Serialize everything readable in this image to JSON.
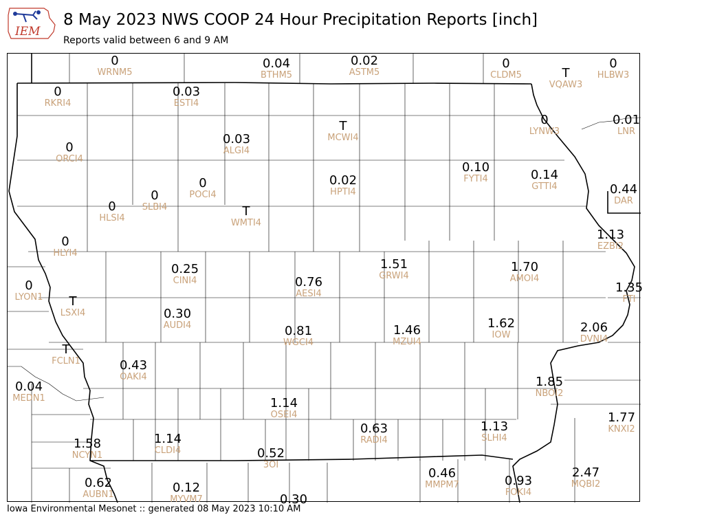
{
  "header": {
    "title": "8 May 2023 NWS COOP 24 Hour Precipitation Reports [inch]",
    "subtitle": "Reports valid between 6 and 9 AM",
    "logo_text": "IEM"
  },
  "footer": "Iowa Environmental Mesonet :: generated 08 May 2023 10:10 AM",
  "colors": {
    "value": "#000000",
    "station_id": "#c9a27a",
    "logo_blue": "#1f3b9a",
    "logo_red": "#c0392b"
  },
  "stations": [
    {
      "id": "WRNM5",
      "value": "0"
    },
    {
      "id": "BTHM5",
      "value": "0.04"
    },
    {
      "id": "ASTM5",
      "value": "0.02"
    },
    {
      "id": "CLDM5",
      "value": "0"
    },
    {
      "id": "VQAW3",
      "value": "T"
    },
    {
      "id": "HLBW3",
      "value": "0"
    },
    {
      "id": "RKRI4",
      "value": "0"
    },
    {
      "id": "ESTI4",
      "value": "0.03"
    },
    {
      "id": "LYNW3",
      "value": "0"
    },
    {
      "id": "LNR",
      "value": "0.01"
    },
    {
      "id": "MCWI4",
      "value": "T"
    },
    {
      "id": "ORCI4",
      "value": "0"
    },
    {
      "id": "ALGI4",
      "value": "0.03"
    },
    {
      "id": "FYTI4",
      "value": "0.10"
    },
    {
      "id": "GTTI4",
      "value": "0.14"
    },
    {
      "id": "DAR",
      "value": "0.44"
    },
    {
      "id": "HPTI4",
      "value": "0.02"
    },
    {
      "id": "POCI4",
      "value": "0"
    },
    {
      "id": "SLBI4",
      "value": "0"
    },
    {
      "id": "HLSI4",
      "value": "0"
    },
    {
      "id": "WMTI4",
      "value": "T"
    },
    {
      "id": "EZBI2",
      "value": "1.13"
    },
    {
      "id": "HLYI4",
      "value": "0"
    },
    {
      "id": "GRWI4",
      "value": "1.51"
    },
    {
      "id": "AMOI4",
      "value": "1.70"
    },
    {
      "id": "CINI4",
      "value": "0.25"
    },
    {
      "id": "AESI4",
      "value": "0.76"
    },
    {
      "id": "LYON1",
      "value": "0"
    },
    {
      "id": "FTI",
      "value": "1.35"
    },
    {
      "id": "LSXI4",
      "value": "T"
    },
    {
      "id": "AUDI4",
      "value": "0.30"
    },
    {
      "id": "IOW",
      "value": "1.62"
    },
    {
      "id": "WGCI4",
      "value": "0.81"
    },
    {
      "id": "MZUI4",
      "value": "1.46"
    },
    {
      "id": "DVNI4",
      "value": "2.06"
    },
    {
      "id": "FCLN1",
      "value": "T"
    },
    {
      "id": "OAKI4",
      "value": "0.43"
    },
    {
      "id": "NBOI2",
      "value": "1.85"
    },
    {
      "id": "MEDN1",
      "value": "0.04"
    },
    {
      "id": "OSEI4",
      "value": "1.14"
    },
    {
      "id": "KNXI2",
      "value": "1.77"
    },
    {
      "id": "RADI4",
      "value": "0.63"
    },
    {
      "id": "SLHI4",
      "value": "1.13"
    },
    {
      "id": "NCYN1",
      "value": "1.58"
    },
    {
      "id": "CLDI4",
      "value": "1.14"
    },
    {
      "id": "3OI",
      "value": "0.52"
    },
    {
      "id": "MMPM7",
      "value": "0.46"
    },
    {
      "id": "MQBI2",
      "value": "2.47"
    },
    {
      "id": "AUBN1",
      "value": "0.62"
    },
    {
      "id": "MYVM7",
      "value": "0.12"
    },
    {
      "id": "FOKI4",
      "value": "0.93"
    },
    {
      "id": "",
      "value": "0.30"
    }
  ]
}
